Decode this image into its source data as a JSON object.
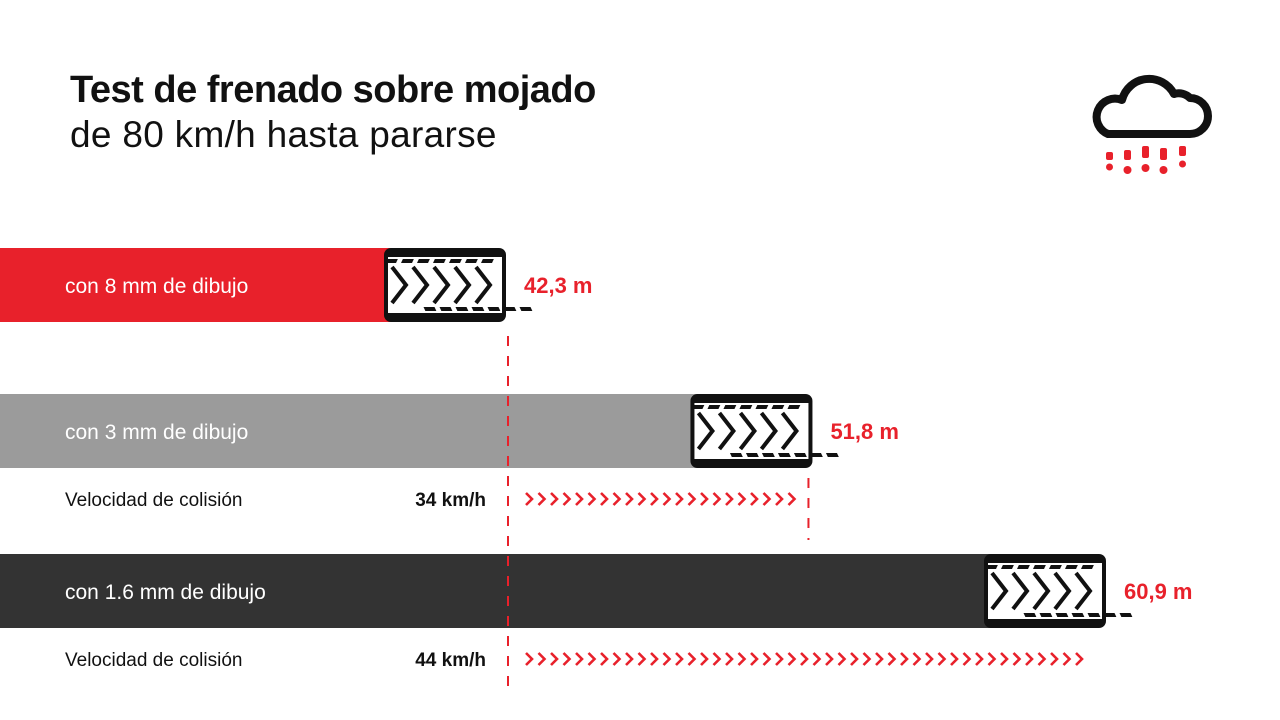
{
  "header": {
    "title": "Test de frenado sobre mojado",
    "subtitle": "de 80 km/h hasta pararse"
  },
  "icon": "rain-cloud-icon",
  "colors": {
    "accent": "#e8212b",
    "bar_8mm": "#e8212b",
    "bar_3mm": "#9b9b9b",
    "bar_16mm": "#333333",
    "text": "#111111"
  },
  "chart_data": {
    "type": "bar",
    "orientation": "horizontal",
    "title": "Test de frenado sobre mojado",
    "subtitle": "de 80 km/h hasta pararse",
    "categories": [
      "con 8 mm de dibujo",
      "con 3 mm de dibujo",
      "con 1.6 mm de dibujo"
    ],
    "values": [
      42.3,
      51.8,
      60.9
    ],
    "value_labels": [
      "42,3 m",
      "51,8 m",
      "60,9 m"
    ],
    "collision": [
      null,
      {
        "label": "Velocidad de colisión",
        "value": "34 km/h",
        "speed": 34
      },
      {
        "label": "Velocidad de colisión",
        "value": "44 km/h",
        "speed": 44
      }
    ],
    "reference_line": 42.3,
    "grid": false
  }
}
